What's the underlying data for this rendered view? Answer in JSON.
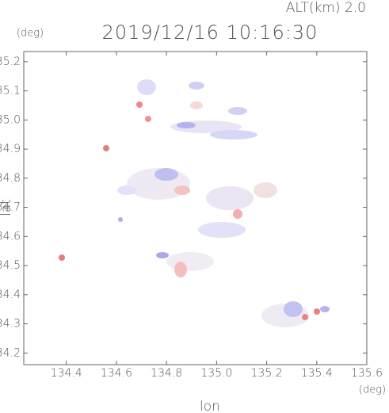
{
  "chart_data": {
    "type": "image",
    "annotation": "ALT(km)  2.0",
    "title": "2019/12/16 10:16:30",
    "y_unit": "(deg)",
    "x_unit": "(deg)",
    "ylabel": "lat",
    "xlabel": "lon",
    "xlim": [
      134.23,
      135.6
    ],
    "ylim": [
      34.16,
      35.235
    ],
    "xticks": [
      134.4,
      134.6,
      134.8,
      {
        "value": 135.0,
        "label": "135.0"
      },
      135.2,
      135.4,
      135.6
    ],
    "yticks": [
      34.2,
      34.3,
      34.4,
      34.5,
      34.6,
      34.7,
      34.8,
      34.9,
      {
        "value": 35.0,
        "label": "35.0"
      },
      35.1,
      35.2
    ]
  }
}
